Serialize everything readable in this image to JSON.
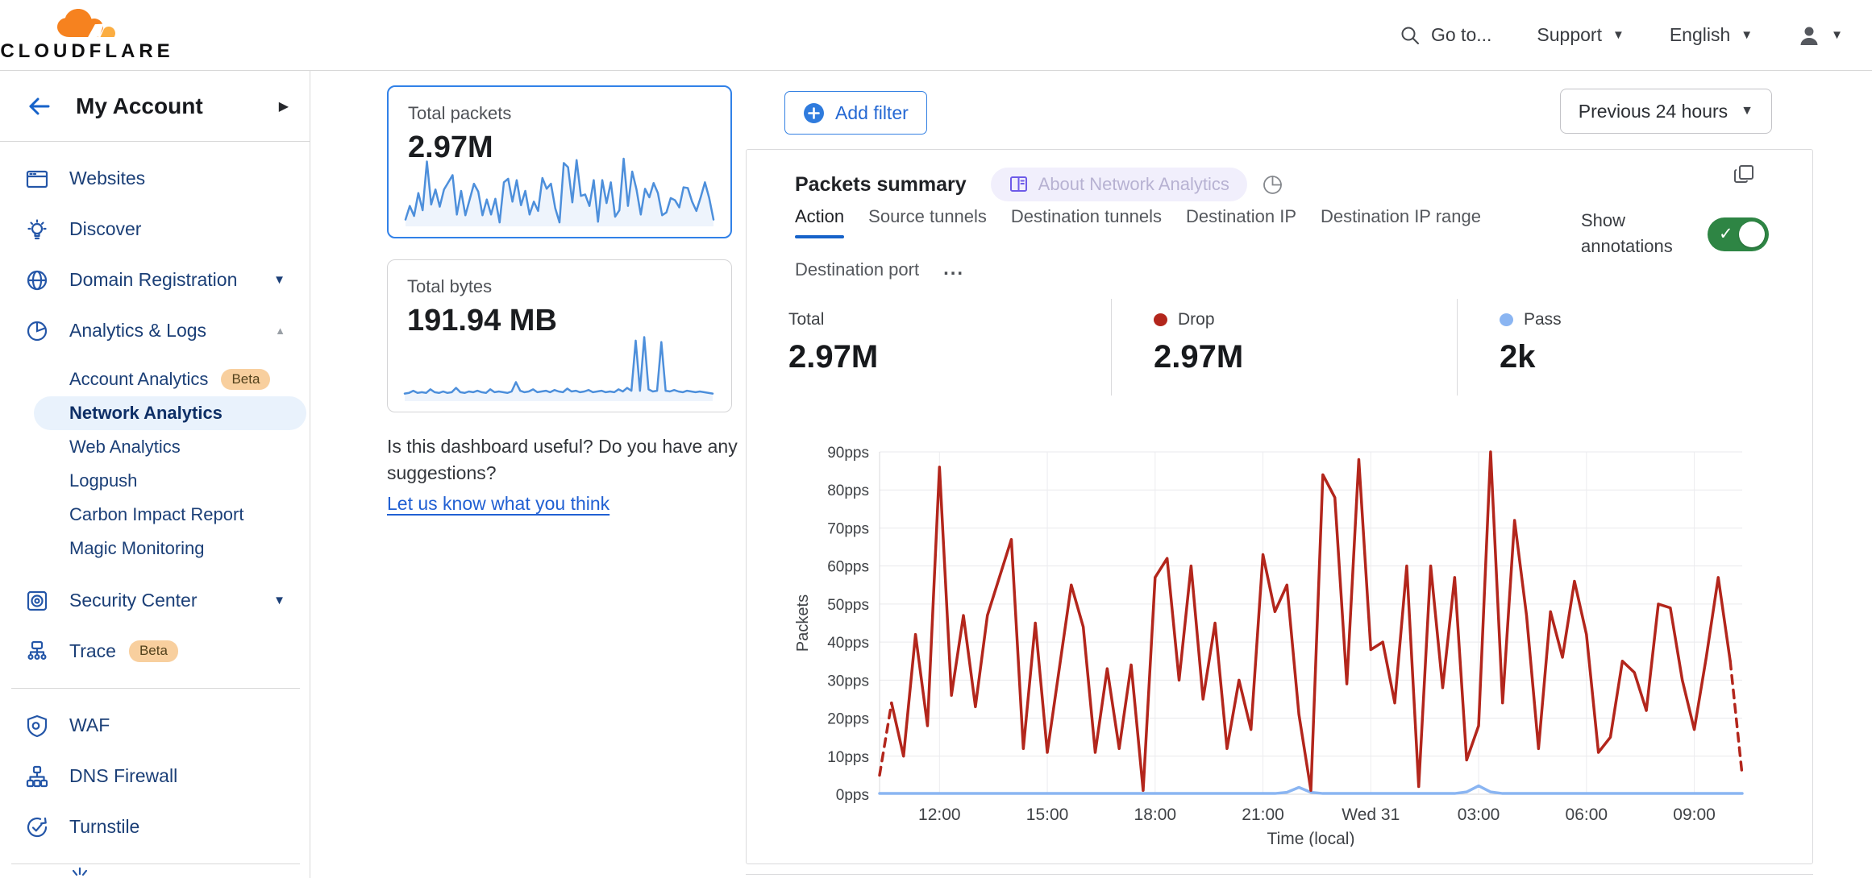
{
  "header": {
    "brand": "CLOUDFLARE",
    "go_to": "Go to...",
    "support": "Support",
    "language": "English"
  },
  "sidebar": {
    "account_title": "My Account",
    "items": [
      {
        "label": "Websites"
      },
      {
        "label": "Discover"
      },
      {
        "label": "Domain Registration",
        "expandable": true
      },
      {
        "label": "Analytics & Logs",
        "expandable": true,
        "expanded": true
      },
      {
        "label": "Security Center",
        "expandable": true
      },
      {
        "label": "Trace",
        "badge": "Beta"
      },
      {
        "label": "WAF"
      },
      {
        "label": "DNS Firewall"
      },
      {
        "label": "Turnstile"
      }
    ],
    "analytics_subitems": [
      {
        "label": "Account Analytics",
        "badge": "Beta"
      },
      {
        "label": "Network Analytics",
        "active": true
      },
      {
        "label": "Web Analytics"
      },
      {
        "label": "Logpush"
      },
      {
        "label": "Carbon Impact Report"
      },
      {
        "label": "Magic Monitoring"
      }
    ]
  },
  "cards": {
    "total_packets": {
      "label": "Total packets",
      "value": "2.97M",
      "selected": true,
      "spark_values": [
        5,
        24,
        10,
        42,
        18,
        86,
        26,
        47,
        23,
        47,
        57,
        67,
        12,
        45,
        11,
        33,
        55,
        44,
        11,
        33,
        12,
        34,
        1,
        57,
        62,
        30,
        60,
        25,
        45,
        12,
        30,
        17,
        63,
        48,
        55,
        21,
        1,
        84,
        78,
        29,
        88,
        38,
        40,
        24,
        60,
        2,
        60,
        28,
        57,
        9,
        18,
        90,
        24,
        72,
        47,
        12,
        48,
        36,
        56,
        42,
        11,
        15,
        35,
        32,
        22,
        50,
        49,
        30,
        17,
        36,
        57,
        35,
        5
      ]
    },
    "total_bytes": {
      "label": "Total bytes",
      "value": "191.94 MB",
      "spark_values": [
        6,
        7,
        10,
        7,
        8,
        7,
        12,
        8,
        7,
        9,
        7,
        8,
        14,
        8,
        7,
        9,
        8,
        10,
        8,
        7,
        12,
        8,
        9,
        8,
        7,
        9,
        22,
        10,
        8,
        9,
        12,
        8,
        9,
        10,
        8,
        11,
        9,
        8,
        13,
        9,
        10,
        8,
        9,
        11,
        8,
        9,
        10,
        8,
        9,
        8,
        12,
        9,
        14,
        10,
        80,
        10,
        85,
        12,
        9,
        10,
        78,
        10,
        9,
        11,
        9,
        8,
        10,
        9,
        8,
        9,
        8,
        7,
        6
      ]
    }
  },
  "feedback": {
    "question": "Is this dashboard useful? Do you have any suggestions?",
    "link_label": "Let us know what you think"
  },
  "main": {
    "add_filter_label": "Add filter",
    "time_range_label": "Previous 24 hours",
    "summary": {
      "title": "Packets summary",
      "about_badge": "About Network Analytics",
      "tabs": [
        "Action",
        "Source tunnels",
        "Destination tunnels",
        "Destination IP",
        "Destination IP range",
        "Destination port"
      ],
      "active_tab": "Action",
      "tabs_overflow": "...",
      "show_annotations_label": "Show annotations",
      "annotations_on": true,
      "stats": [
        {
          "label": "Total",
          "value": "2.97M",
          "dot_color": ""
        },
        {
          "label": "Drop",
          "value": "2.97M",
          "dot_color": "#b3261c"
        },
        {
          "label": "Pass",
          "value": "2k",
          "dot_color": "#8ab5f2"
        }
      ]
    }
  },
  "colors": {
    "accent_blue": "#3380e2",
    "selected_card_border": "#3181e8",
    "sidebar_link": "#1b3f77",
    "active_pill_bg": "#e9f2fc",
    "beta_badge_bg": "#f8cf9e",
    "toggle_green": "#2e8544",
    "drop_red": "#b3261c",
    "pass_blue": "#8ab5f2",
    "spark_blue": "#4d8fdb",
    "active_tab_underline": "#1662c9"
  },
  "chart_data": {
    "type": "line",
    "title": "Packets summary",
    "xlabel": "Time (local)",
    "ylabel": "Packets",
    "ylim": [
      0,
      90
    ],
    "y_tick_step": 10,
    "y_unit": "pps",
    "x_start_label": "10:20",
    "x_interval_minutes": 20,
    "x_tick_labels": [
      "12:00",
      "15:00",
      "18:00",
      "21:00",
      "Wed 31",
      "03:00",
      "06:00",
      "09:00"
    ],
    "x_tick_indices": [
      5,
      14,
      23,
      32,
      41,
      50,
      59,
      68
    ],
    "grid": true,
    "legend_position": "top",
    "series": [
      {
        "name": "Drop",
        "color": "#b3261c",
        "dashed_head_points": 2,
        "dashed_tail_points": 2,
        "values": [
          5,
          24,
          10,
          42,
          18,
          86,
          26,
          47,
          23,
          47,
          57,
          67,
          12,
          45,
          11,
          33,
          55,
          44,
          11,
          33,
          12,
          34,
          1,
          57,
          62,
          30,
          60,
          25,
          45,
          12,
          30,
          17,
          63,
          48,
          55,
          21,
          1,
          84,
          78,
          29,
          88,
          38,
          40,
          24,
          60,
          2,
          60,
          28,
          57,
          9,
          18,
          90,
          24,
          72,
          47,
          12,
          48,
          36,
          56,
          42,
          11,
          15,
          35,
          32,
          22,
          50,
          49,
          30,
          17,
          36,
          57,
          35,
          5
        ]
      },
      {
        "name": "Pass",
        "color": "#8ab5f2",
        "values": [
          0.2,
          0.2,
          0.2,
          0.2,
          0.2,
          0.2,
          0.2,
          0.2,
          0.2,
          0.2,
          0.2,
          0.2,
          0.2,
          0.2,
          0.2,
          0.2,
          0.2,
          0.2,
          0.2,
          0.2,
          0.2,
          0.2,
          0.2,
          0.2,
          0.2,
          0.2,
          0.2,
          0.2,
          0.2,
          0.2,
          0.2,
          0.2,
          0.2,
          0.2,
          0.5,
          1.8,
          0.5,
          0.2,
          0.2,
          0.2,
          0.2,
          0.2,
          0.2,
          0.2,
          0.2,
          0.2,
          0.2,
          0.2,
          0.2,
          0.6,
          2.2,
          0.6,
          0.2,
          0.2,
          0.2,
          0.2,
          0.2,
          0.2,
          0.2,
          0.2,
          0.2,
          0.2,
          0.2,
          0.2,
          0.2,
          0.2,
          0.2,
          0.2,
          0.2,
          0.2,
          0.2,
          0.2,
          0.2
        ]
      }
    ]
  }
}
